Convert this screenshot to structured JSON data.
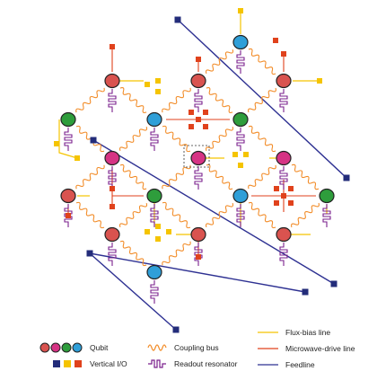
{
  "colors": {
    "qubit_red": "#d9534f",
    "qubit_magenta": "#d63384",
    "qubit_green": "#2e9d3c",
    "qubit_blue": "#2f9fd8",
    "flux": "#f5c400",
    "drive": "#e0421c",
    "feedline": "#2e3192",
    "coupling": "#f28c28",
    "resonator": "#7a1f8c",
    "io_navy": "#232c7a",
    "io_yellow": "#f5c400",
    "io_red": "#e0421c"
  },
  "legend": {
    "qubit": "Qubit",
    "vertical_io": "Vertical I/O",
    "coupling_bus": "Coupling bus",
    "readout_resonator": "Readout resonator",
    "flux_bias_line": "Flux-bias line",
    "microwave_drive_line": "Microwave-drive line",
    "feedline": "Feedline"
  },
  "legend_icons": {
    "qubit_swatches": [
      "qubit_red",
      "qubit_magenta",
      "qubit_green",
      "qubit_blue"
    ],
    "io_swatches": [
      "io_navy",
      "io_yellow",
      "io_red"
    ]
  },
  "qubits": [
    {
      "id": "Q1",
      "color": "qubit_blue"
    },
    {
      "id": "Q2",
      "color": "qubit_red"
    },
    {
      "id": "Q3",
      "color": "qubit_red"
    },
    {
      "id": "Q4",
      "color": "qubit_red"
    },
    {
      "id": "Q5",
      "color": "qubit_green"
    },
    {
      "id": "Q6",
      "color": "qubit_blue"
    },
    {
      "id": "Q7",
      "color": "qubit_green"
    },
    {
      "id": "Q8",
      "color": "qubit_magenta"
    },
    {
      "id": "Q9",
      "color": "qubit_magenta"
    },
    {
      "id": "Q10",
      "color": "qubit_magenta"
    },
    {
      "id": "Q11",
      "color": "qubit_red"
    },
    {
      "id": "Q12",
      "color": "qubit_green"
    },
    {
      "id": "Q13",
      "color": "qubit_blue"
    },
    {
      "id": "Q14",
      "color": "qubit_green"
    },
    {
      "id": "Q15",
      "color": "qubit_red"
    },
    {
      "id": "Q16",
      "color": "qubit_red"
    },
    {
      "id": "Q17",
      "color": "qubit_red"
    },
    {
      "id": "Q18",
      "color": "qubit_blue"
    }
  ]
}
